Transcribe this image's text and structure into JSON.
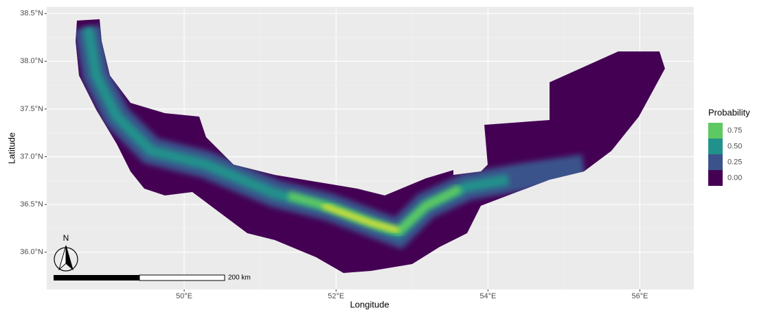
{
  "map": {
    "xlabel": "Longitude",
    "ylabel": "Latitude",
    "xlim": [
      48.19,
      56.71
    ],
    "ylim": [
      35.61,
      38.57
    ],
    "xticks": [
      {
        "value": 50,
        "label": "50°E"
      },
      {
        "value": 52,
        "label": "52°E"
      },
      {
        "value": 54,
        "label": "54°E"
      },
      {
        "value": 56,
        "label": "56°E"
      }
    ],
    "yticks": [
      {
        "value": 36.0,
        "label": "36.0°N"
      },
      {
        "value": 36.5,
        "label": "36.5°N"
      },
      {
        "value": 37.0,
        "label": "37.0°N"
      },
      {
        "value": 37.5,
        "label": "37.5°N"
      },
      {
        "value": 38.0,
        "label": "38.0°N"
      },
      {
        "value": 38.5,
        "label": "38.5°N"
      }
    ],
    "grid": true,
    "legend": {
      "title": "Probability",
      "entries": [
        {
          "value": 0.75,
          "label": "0.75",
          "color": "#5ec962"
        },
        {
          "value": 0.5,
          "label": "0.50",
          "color": "#21918c"
        },
        {
          "value": 0.25,
          "label": "0.25",
          "color": "#3b528b"
        },
        {
          "value": 0,
          "label": "0.00",
          "color": "#440154"
        }
      ]
    },
    "scale_bar": {
      "label": "200 km"
    },
    "north_arrow": {
      "label": "N"
    }
  }
}
